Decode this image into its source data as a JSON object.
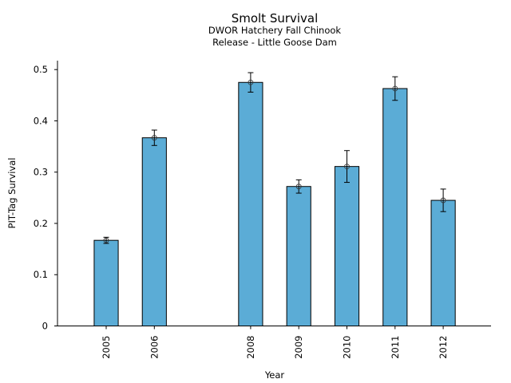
{
  "chart_data": {
    "type": "bar",
    "title": "Smolt Survival",
    "subtitle_lines": [
      "DWOR Hatchery Fall Chinook",
      "Release - Little Goose Dam"
    ],
    "xlabel": "Year",
    "ylabel": "PIT-Tag Survival",
    "x_range": [
      2003.8,
      2013.0
    ],
    "ylim": [
      0,
      0.52
    ],
    "yticks": [
      0,
      0.1,
      0.2,
      0.3,
      0.4,
      0.5
    ],
    "ytick_labels": [
      "0",
      "0.1",
      "0.2",
      "0.3",
      "0.4",
      "0.5"
    ],
    "categories": [
      "2005",
      "2006",
      "2008",
      "2009",
      "2010",
      "2011",
      "2012"
    ],
    "x": [
      2005,
      2006,
      2008,
      2009,
      2010,
      2011,
      2012
    ],
    "values": [
      0.167,
      0.367,
      0.475,
      0.272,
      0.311,
      0.463,
      0.245
    ],
    "error": [
      0.006,
      0.015,
      0.019,
      0.013,
      0.031,
      0.023,
      0.022
    ],
    "bar_width_years": 0.5,
    "bar_color": "#5bacd6",
    "edge_color": "#000000",
    "grid": false,
    "legend": "none"
  }
}
